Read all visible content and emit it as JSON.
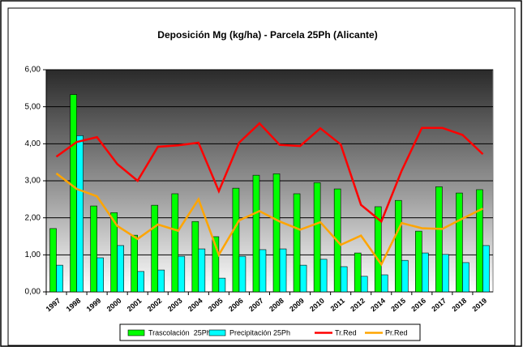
{
  "chart_data": {
    "type": "bar",
    "title": "Deposición Mg (kg/ha) - Parcela 25Ph (Alicante)",
    "categories": [
      "1997",
      "1998",
      "1999",
      "2000",
      "2001",
      "2002",
      "2003",
      "2004",
      "2005",
      "2006",
      "2007",
      "2008",
      "2009",
      "2010",
      "2011",
      "2012",
      "2014",
      "2015",
      "2016",
      "2017",
      "2018",
      "2019"
    ],
    "series": [
      {
        "name": "Trascolación  25Ph",
        "type": "bar",
        "color": "#00ff00",
        "values": [
          1.71,
          5.33,
          2.32,
          2.14,
          1.53,
          2.34,
          2.65,
          1.9,
          1.49,
          2.8,
          3.15,
          3.19,
          2.65,
          2.95,
          2.78,
          1.05,
          2.3,
          2.47,
          1.64,
          2.84,
          2.67,
          2.76
        ]
      },
      {
        "name": "Precipitación 25Ph",
        "type": "bar",
        "color": "#00ffff",
        "values": [
          0.72,
          4.22,
          0.92,
          1.25,
          0.55,
          0.59,
          0.96,
          1.16,
          0.37,
          0.96,
          1.14,
          1.16,
          0.72,
          0.88,
          0.68,
          0.42,
          0.46,
          0.85,
          1.05,
          1.01,
          0.79,
          1.25
        ]
      },
      {
        "name": "Tr.Red",
        "type": "line",
        "color": "#ff0000",
        "values": [
          3.65,
          4.05,
          4.18,
          3.45,
          3.0,
          3.92,
          3.96,
          4.03,
          2.72,
          4.03,
          4.55,
          3.97,
          3.94,
          4.42,
          3.98,
          2.35,
          1.9,
          3.27,
          4.43,
          4.43,
          4.24,
          3.72
        ]
      },
      {
        "name": "Pr.Red",
        "type": "line",
        "color": "#ffa500",
        "values": [
          3.2,
          2.78,
          2.58,
          1.78,
          1.43,
          1.82,
          1.65,
          2.5,
          1.0,
          1.93,
          2.18,
          1.9,
          1.68,
          1.88,
          1.27,
          1.52,
          0.74,
          1.86,
          1.72,
          1.7,
          1.98,
          2.25
        ]
      }
    ],
    "ylim": [
      0,
      6
    ],
    "yticks": [
      {
        "value": 0,
        "label": "0,00"
      },
      {
        "value": 1,
        "label": "1,00"
      },
      {
        "value": 2,
        "label": "2,00"
      },
      {
        "value": 3,
        "label": "3,00"
      },
      {
        "value": 4,
        "label": "4,00"
      },
      {
        "value": 5,
        "label": "5,00"
      },
      {
        "value": 6,
        "label": "6,00"
      }
    ],
    "grid": true
  }
}
